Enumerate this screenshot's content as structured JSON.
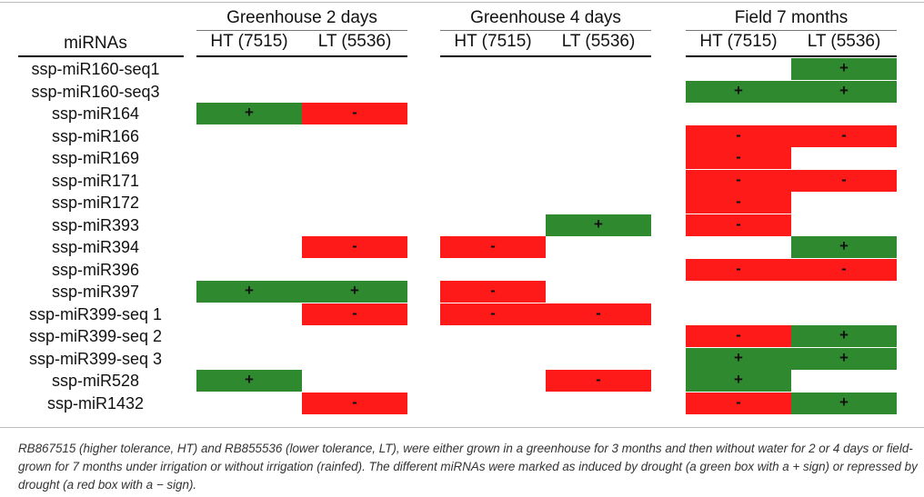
{
  "groups": [
    {
      "title": "Greenhouse 2 days",
      "col1": "HT (7515)",
      "col2": "LT (5536)"
    },
    {
      "title": "Greenhouse 4 days",
      "col1": "HT (7515)",
      "col2": "LT (5536)"
    },
    {
      "title": "Field 7 months",
      "col1": "HT (7515)",
      "col2": "LT (5536)"
    }
  ],
  "mirna_header": "miRNAs",
  "rows": [
    {
      "label": "ssp-miR160-seq1",
      "marks": [
        "",
        "",
        "",
        "",
        "",
        "+"
      ]
    },
    {
      "label": "ssp-miR160-seq3",
      "marks": [
        "",
        "",
        "",
        "",
        "+",
        "+"
      ]
    },
    {
      "label": "ssp-miR164",
      "marks": [
        "+",
        "-",
        "",
        "",
        "",
        ""
      ]
    },
    {
      "label": "ssp-miR166",
      "marks": [
        "",
        "",
        "",
        "",
        "-",
        "-"
      ]
    },
    {
      "label": "ssp-miR169",
      "marks": [
        "",
        "",
        "",
        "",
        "-",
        ""
      ]
    },
    {
      "label": "ssp-miR171",
      "marks": [
        "",
        "",
        "",
        "",
        "-",
        "-"
      ]
    },
    {
      "label": "ssp-miR172",
      "marks": [
        "",
        "",
        "",
        "",
        "-",
        ""
      ]
    },
    {
      "label": "ssp-miR393",
      "marks": [
        "",
        "",
        "",
        "+",
        "-",
        ""
      ]
    },
    {
      "label": "ssp-miR394",
      "marks": [
        "",
        "-",
        "-",
        "",
        "",
        "+"
      ]
    },
    {
      "label": "ssp-miR396",
      "marks": [
        "",
        "",
        "",
        "",
        "-",
        "-"
      ]
    },
    {
      "label": "ssp-miR397",
      "marks": [
        "+",
        "+",
        "-",
        "",
        "",
        ""
      ]
    },
    {
      "label": "ssp-miR399-seq 1",
      "marks": [
        "",
        "-",
        "-",
        "-",
        "",
        ""
      ]
    },
    {
      "label": "ssp-miR399-seq 2",
      "marks": [
        "",
        "",
        "",
        "",
        "-",
        "+"
      ]
    },
    {
      "label": "ssp-miR399-seq 3",
      "marks": [
        "",
        "",
        "",
        "",
        "+",
        "+"
      ]
    },
    {
      "label": "ssp-miR528",
      "marks": [
        "+",
        "",
        "",
        "-",
        "+",
        ""
      ]
    },
    {
      "label": "ssp-miR1432",
      "marks": [
        "",
        "-",
        "",
        "",
        "-",
        "+"
      ]
    }
  ],
  "caption": "RB867515 (higher tolerance, HT) and RB855536 (lower tolerance, LT), were either grown in a greenhouse for 3 months and then without water for 2 or 4 days or field-grown for 7 months under irrigation or without irrigation (rainfed). The different miRNAs were marked as induced by drought (a green box with a + sign) or repressed by drought (a red box with a − sign).",
  "colors": {
    "induced": "#2f8a2f",
    "repressed": "#ff1a1a"
  }
}
